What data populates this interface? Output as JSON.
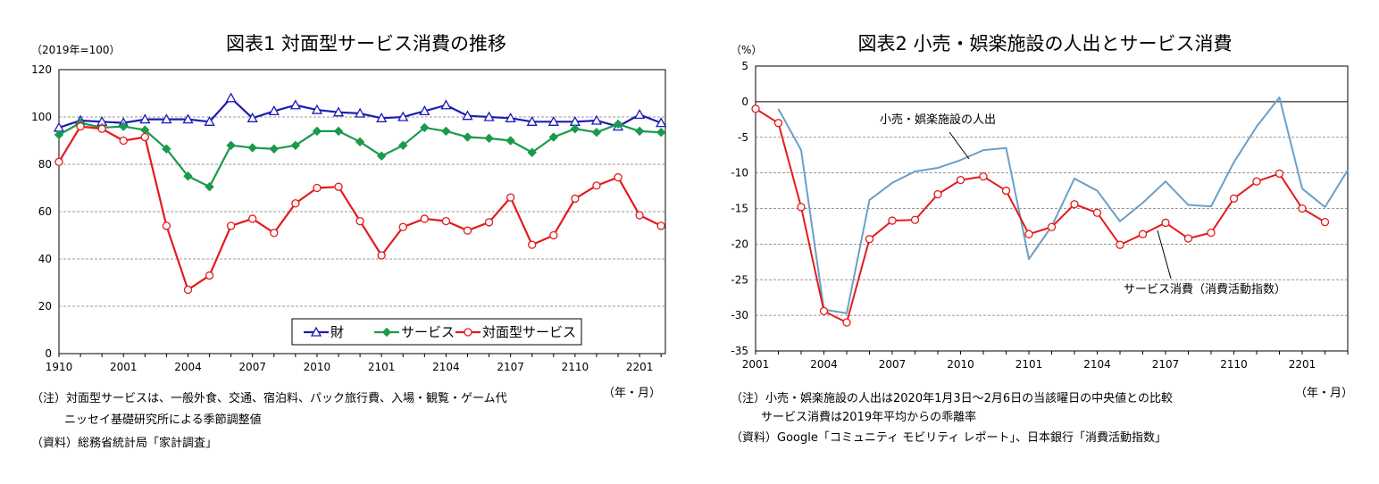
{
  "chart_data": [
    {
      "type": "line",
      "title": "図表1 対面型サービス消費の推移",
      "unit_label": "（2019年=100）",
      "xlabel": "（年・月）",
      "x": [
        "1910",
        "1911",
        "1912",
        "2001",
        "2002",
        "2003",
        "2004",
        "2005",
        "2006",
        "2007",
        "2008",
        "2009",
        "2010",
        "2011",
        "2012",
        "2101",
        "2102",
        "2103",
        "2104",
        "2105",
        "2106",
        "2107",
        "2108",
        "2109",
        "2110",
        "2111",
        "2112",
        "2201",
        "2202"
      ],
      "x_tick_labels": [
        "1910",
        "2001",
        "2004",
        "2007",
        "2010",
        "2101",
        "2104",
        "2107",
        "2110",
        "2201"
      ],
      "ylim": [
        0,
        120
      ],
      "y_ticks": [
        0,
        20,
        40,
        60,
        80,
        100,
        120
      ],
      "grid": true,
      "legend_position": "bottom-right",
      "series": [
        {
          "name": "財",
          "color": "#1c1cb4",
          "marker": "triangle",
          "values": [
            95.5,
            98.5,
            98,
            97.5,
            99,
            99,
            99,
            98,
            108,
            99.5,
            102.5,
            105,
            103,
            102,
            101.5,
            99.5,
            100,
            102.5,
            105,
            100.5,
            100,
            99.5,
            98,
            98,
            98,
            98.5,
            96,
            101,
            97.5
          ]
        },
        {
          "name": "サービス",
          "color": "#1a9a4a",
          "marker": "diamond",
          "values": [
            92.5,
            97.5,
            95.5,
            96,
            94.5,
            86.5,
            75,
            70.5,
            88,
            87,
            86.5,
            88,
            94,
            94,
            89.5,
            83.5,
            88,
            95.5,
            94,
            91.5,
            91,
            90,
            85,
            91.5,
            95,
            93.5,
            97,
            94,
            93.5
          ]
        },
        {
          "name": "対面型サービス",
          "color": "#e41a1c",
          "marker": "circle",
          "values": [
            81,
            96,
            95,
            90,
            91.5,
            54,
            27,
            33,
            54,
            57,
            51,
            63.5,
            70,
            70.5,
            56,
            41.5,
            53.5,
            57,
            56,
            52,
            55.5,
            66,
            46,
            50,
            65.5,
            71,
            74.5,
            58.5,
            54
          ]
        }
      ],
      "notes": [
        "（注）対面型サービスは、一般外食、交通、宿泊料、パック旅行費、入場・観覧・ゲーム代",
        "ニッセイ基礎研究所による季節調整値",
        "（資料）総務省統計局「家計調査」"
      ]
    },
    {
      "type": "line",
      "title": "図表2 小売・娯楽施設の人出とサービス消費",
      "unit_label": "（%）",
      "xlabel": "（年・月）",
      "x": [
        "2001",
        "2002",
        "2003",
        "2004",
        "2005",
        "2006",
        "2007",
        "2008",
        "2009",
        "2010",
        "2011",
        "2012",
        "2101",
        "2102",
        "2103",
        "2104",
        "2105",
        "2106",
        "2107",
        "2108",
        "2109",
        "2110",
        "2111",
        "2112",
        "2201",
        "2202",
        "2203"
      ],
      "x_tick_labels": [
        "2001",
        "2004",
        "2007",
        "2010",
        "2101",
        "2104",
        "2107",
        "2110",
        "2201"
      ],
      "ylim": [
        -35,
        5
      ],
      "y_ticks": [
        -35,
        -30,
        -25,
        -20,
        -15,
        -10,
        -5,
        0,
        5
      ],
      "grid": true,
      "series": [
        {
          "name": "小売・娯楽施設の人出",
          "color": "#6b9fc8",
          "marker": "none",
          "values": [
            null,
            -1,
            -6.8,
            -29.2,
            -29.7,
            -13.8,
            -11.4,
            -9.8,
            -9.3,
            -8.2,
            -6.8,
            -6.5,
            -22.1,
            -17.5,
            -10.8,
            -12.5,
            -16.8,
            -14.2,
            -11.2,
            -14.5,
            -14.7,
            -8.5,
            -3.5,
            0.6,
            -12.2,
            -14.8,
            -9.6
          ]
        },
        {
          "name": "サービス消費（消費活動指数）",
          "color": "#e41a1c",
          "marker": "circle",
          "values": [
            -1,
            -3,
            -14.8,
            -29.4,
            -31,
            -19.3,
            -16.7,
            -16.6,
            -13,
            -11,
            -10.5,
            -12.5,
            -18.6,
            -17.6,
            -14.4,
            -15.6,
            -20.1,
            -18.6,
            -17,
            -19.2,
            -18.4,
            -13.6,
            -11.2,
            -10.1,
            -15,
            -16.9,
            null
          ]
        }
      ],
      "notes": [
        "（注）小売・娯楽施設の人出は2020年1月3日～2月6日の当該曜日の中央値との比較",
        "サービス消費は2019年平均からの乖離率",
        "（資料）Google「コミュニティ モビリティ レポート」、日本銀行「消費活動指数」"
      ]
    }
  ]
}
